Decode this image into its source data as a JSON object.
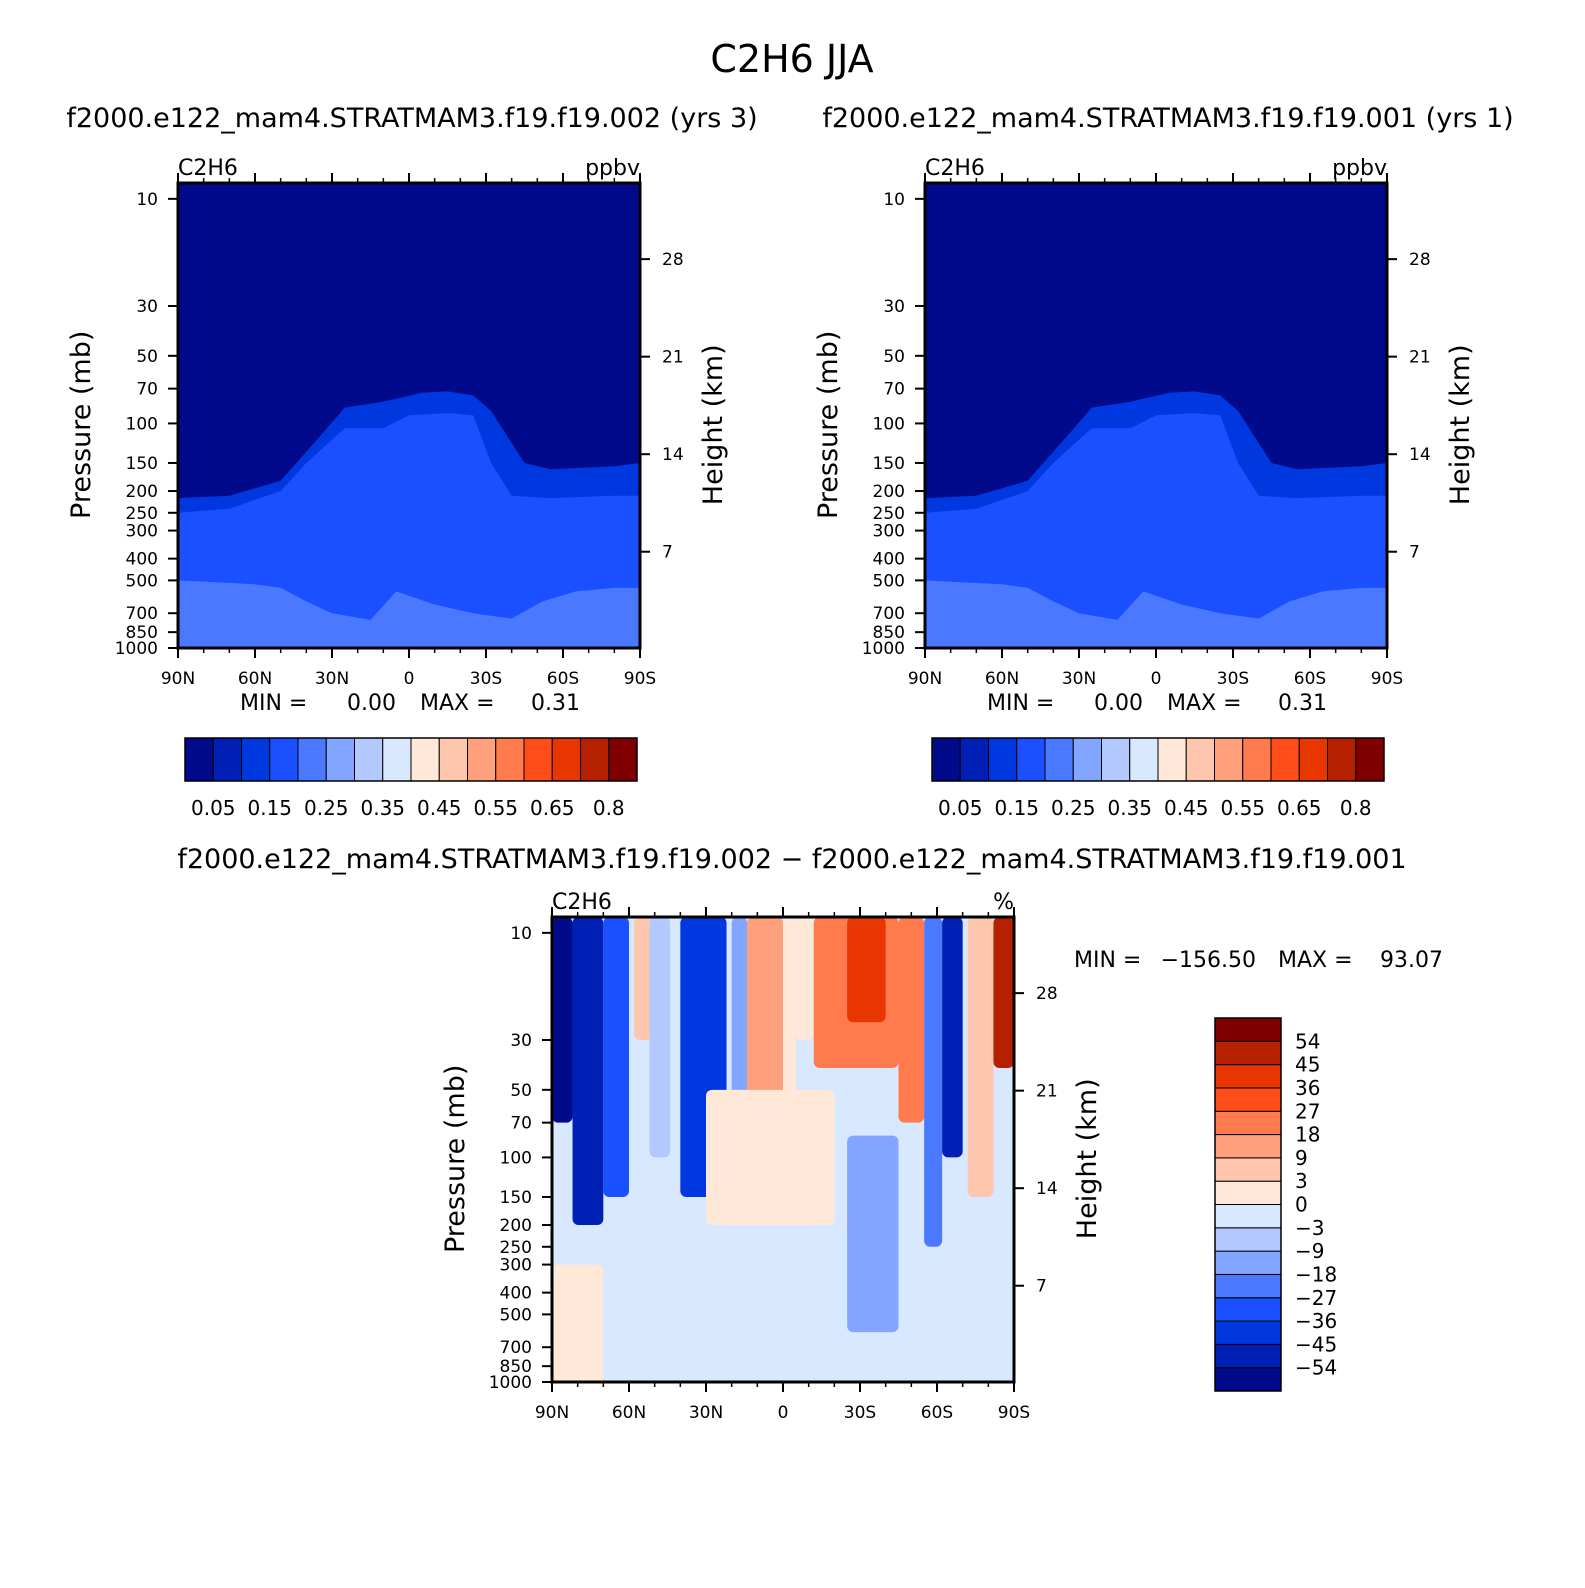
{
  "figure": {
    "title": "C2H6 JJA",
    "left_title": "f2000.e122_mam4.STRATMAM3.f19.f19.002 (yrs 3)",
    "right_title": "f2000.e122_mam4.STRATMAM3.f19.f19.001 (yrs 1)",
    "diff_title": "f2000.e122_mam4.STRATMAM3.f19.f19.002 − f2000.e122_mam4.STRATMAM3.f19.f19.001"
  },
  "chart_data": [
    {
      "type": "heatmap",
      "id": "panel1",
      "field": "C2H6",
      "units": "ppbv",
      "ylabel": "Pressure (mb)",
      "ylabel_right": "Height (km)",
      "x_ticks": [
        "90N",
        "60N",
        "30N",
        "0",
        "30S",
        "60S",
        "90S"
      ],
      "y_ticks": [
        "10",
        "30",
        "50",
        "70",
        "100",
        "150",
        "200",
        "250",
        "300",
        "400",
        "500",
        "700",
        "850",
        "1000"
      ],
      "y_ticks_right": [
        "28",
        "21",
        "14",
        "7"
      ],
      "stats": {
        "min_label": "MIN =",
        "min": "0.00",
        "max_label": "MAX =",
        "max": "0.31"
      },
      "regions": [
        {
          "level": 2,
          "lat_top": [
            [
              -90,
              215
            ],
            [
              -70,
              210
            ],
            [
              -50,
              180
            ],
            [
              -35,
              115
            ],
            [
              -25,
              85
            ],
            [
              -10,
              80
            ],
            [
              5,
              73
            ],
            [
              15,
              72
            ],
            [
              25,
              75
            ],
            [
              32,
              88
            ],
            [
              45,
              150
            ],
            [
              55,
              160
            ],
            [
              80,
              155
            ],
            [
              90,
              150
            ]
          ]
        },
        {
          "level": 3,
          "lat_top": [
            [
              -90,
              250
            ],
            [
              -70,
              240
            ],
            [
              -50,
              200
            ],
            [
              -40,
              150
            ],
            [
              -25,
              105
            ],
            [
              -10,
              105
            ],
            [
              0,
              92
            ],
            [
              15,
              90
            ],
            [
              25,
              92
            ],
            [
              32,
              150
            ],
            [
              40,
              210
            ],
            [
              55,
              215
            ],
            [
              80,
              210
            ],
            [
              90,
              210
            ]
          ]
        },
        {
          "level": 4,
          "lat_top": [
            [
              -90,
              500
            ],
            [
              -60,
              520
            ],
            [
              -50,
              540
            ],
            [
              -40,
              620
            ],
            [
              -30,
              700
            ],
            [
              -15,
              750
            ],
            [
              -5,
              560
            ],
            [
              10,
              640
            ],
            [
              25,
              700
            ],
            [
              40,
              740
            ],
            [
              52,
              620
            ],
            [
              65,
              560
            ],
            [
              80,
              540
            ],
            [
              90,
              540
            ]
          ]
        }
      ]
    },
    {
      "type": "heatmap",
      "id": "panel2",
      "field": "C2H6",
      "units": "ppbv",
      "ylabel": "Pressure (mb)",
      "ylabel_right": "Height (km)",
      "x_ticks": [
        "90N",
        "60N",
        "30N",
        "0",
        "30S",
        "60S",
        "90S"
      ],
      "y_ticks": [
        "10",
        "30",
        "50",
        "70",
        "100",
        "150",
        "200",
        "250",
        "300",
        "400",
        "500",
        "700",
        "850",
        "1000"
      ],
      "y_ticks_right": [
        "28",
        "21",
        "14",
        "7"
      ],
      "stats": {
        "min_label": "MIN =",
        "min": "0.00",
        "max_label": "MAX =",
        "max": "0.31"
      },
      "regions": [
        {
          "level": 2,
          "lat_top": [
            [
              -90,
              215
            ],
            [
              -70,
              210
            ],
            [
              -50,
              180
            ],
            [
              -35,
              115
            ],
            [
              -25,
              85
            ],
            [
              -10,
              80
            ],
            [
              5,
              73
            ],
            [
              15,
              72
            ],
            [
              25,
              75
            ],
            [
              32,
              88
            ],
            [
              45,
              150
            ],
            [
              55,
              160
            ],
            [
              80,
              155
            ],
            [
              90,
              150
            ]
          ]
        },
        {
          "level": 3,
          "lat_top": [
            [
              -90,
              250
            ],
            [
              -70,
              240
            ],
            [
              -50,
              200
            ],
            [
              -40,
              150
            ],
            [
              -25,
              105
            ],
            [
              -10,
              105
            ],
            [
              0,
              92
            ],
            [
              15,
              90
            ],
            [
              25,
              92
            ],
            [
              32,
              150
            ],
            [
              40,
              210
            ],
            [
              55,
              215
            ],
            [
              80,
              210
            ],
            [
              90,
              210
            ]
          ]
        },
        {
          "level": 4,
          "lat_top": [
            [
              -90,
              500
            ],
            [
              -60,
              520
            ],
            [
              -50,
              540
            ],
            [
              -40,
              620
            ],
            [
              -30,
              700
            ],
            [
              -15,
              750
            ],
            [
              -5,
              560
            ],
            [
              10,
              640
            ],
            [
              25,
              700
            ],
            [
              40,
              740
            ],
            [
              52,
              620
            ],
            [
              65,
              560
            ],
            [
              80,
              540
            ],
            [
              90,
              540
            ]
          ]
        }
      ]
    },
    {
      "type": "heatmap",
      "id": "diff",
      "field": "C2H6",
      "units": "%",
      "ylabel": "Pressure (mb)",
      "ylabel_right": "Height (km)",
      "x_ticks": [
        "90N",
        "60N",
        "30N",
        "0",
        "30S",
        "60S",
        "90S"
      ],
      "y_ticks": [
        "10",
        "30",
        "50",
        "70",
        "100",
        "150",
        "200",
        "250",
        "300",
        "400",
        "500",
        "700",
        "850",
        "1000"
      ],
      "y_ticks_right": [
        "28",
        "21",
        "14",
        "7"
      ],
      "stats": {
        "min_label": "MIN =",
        "min": "−156.50",
        "max_label": "MAX =",
        "max": "93.07"
      },
      "background_level": 7,
      "columns": [
        {
          "lat_range": [
            -90,
            -82
          ],
          "p_bottom": 70,
          "level": 0
        },
        {
          "lat_range": [
            -82,
            -70
          ],
          "p_bottom": 200,
          "level": 1
        },
        {
          "lat_range": [
            -70,
            -60
          ],
          "p_bottom": 150,
          "level": 3
        },
        {
          "lat_range": [
            -58,
            -50
          ],
          "p_bottom": 30,
          "level": 9
        },
        {
          "lat_range": [
            -52,
            -44
          ],
          "p_bottom": 100,
          "level": 6
        },
        {
          "lat_range": [
            -40,
            -22
          ],
          "p_bottom": 150,
          "level": 2
        },
        {
          "lat_range": [
            -20,
            -14
          ],
          "p_bottom": 200,
          "level": 5
        },
        {
          "lat_range": [
            -14,
            0
          ],
          "p_bottom": 70,
          "level": 10
        },
        {
          "lat_range": [
            0,
            5
          ],
          "p_bottom": 200,
          "level": 8
        },
        {
          "lat_range": [
            5,
            12
          ],
          "p_bottom": 30,
          "level": 8
        },
        {
          "lat_range": [
            12,
            45
          ],
          "p_bottom": 40,
          "level": 11
        },
        {
          "lat_range": [
            25,
            40
          ],
          "p_bottom": 25,
          "level": 13
        },
        {
          "lat_range": [
            45,
            55
          ],
          "p_bottom": 70,
          "level": 11
        },
        {
          "lat_range": [
            55,
            62
          ],
          "p_bottom": 250,
          "level": 4
        },
        {
          "lat_range": [
            62,
            70
          ],
          "p_bottom": 100,
          "level": 1
        },
        {
          "lat_range": [
            72,
            82
          ],
          "p_bottom": 150,
          "level": 9
        },
        {
          "lat_range": [
            82,
            90
          ],
          "p_bottom": 40,
          "level": 14
        },
        {
          "lat_range": [
            -90,
            -70
          ],
          "p_top": 300,
          "level": 8
        },
        {
          "lat_range": [
            -30,
            20
          ],
          "p_top": 50,
          "p_bottom": 200,
          "level": 8
        },
        {
          "lat_range": [
            25,
            45
          ],
          "p_top": 80,
          "p_bottom": 600,
          "level": 5
        }
      ]
    }
  ],
  "colorbars": {
    "panel": {
      "colors": [
        "#000a8a",
        "#0020b5",
        "#0038e0",
        "#1a50ff",
        "#4a78ff",
        "#82a6ff",
        "#b2c8ff",
        "#d8e8ff",
        "#ffe8d8",
        "#ffc6ae",
        "#ffa07c",
        "#ff7a4c",
        "#ff4d1a",
        "#e83600",
        "#b52000",
        "#800000"
      ],
      "labels": [
        "0.05",
        "0.15",
        "0.25",
        "0.35",
        "0.45",
        "0.55",
        "0.65",
        "0.8"
      ]
    },
    "diff": {
      "colors": [
        "#000a8a",
        "#0020b5",
        "#0038e0",
        "#1a50ff",
        "#4a78ff",
        "#82a6ff",
        "#b2c8ff",
        "#d8e8ff",
        "#ffe8d8",
        "#ffc6ae",
        "#ffa07c",
        "#ff7a4c",
        "#ff4d1a",
        "#e83600",
        "#b52000",
        "#800000"
      ],
      "labels": [
        "54",
        "45",
        "36",
        "27",
        "18",
        "9",
        "3",
        "0",
        "−3",
        "−9",
        "−18",
        "−27",
        "−36",
        "−45",
        "−54"
      ]
    }
  }
}
